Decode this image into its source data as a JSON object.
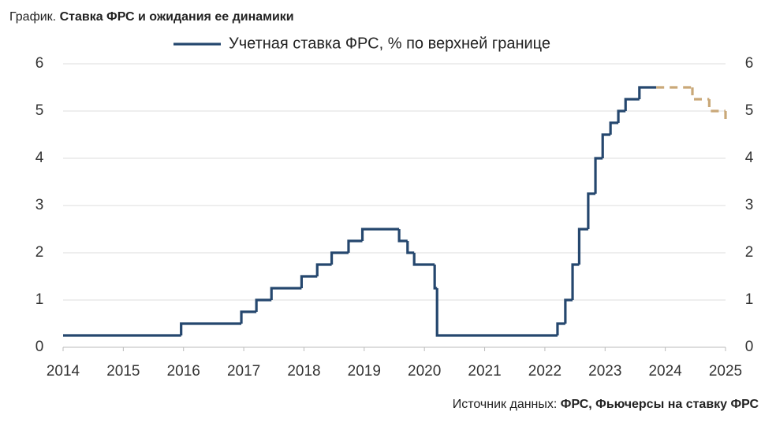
{
  "chart_data": {
    "type": "line",
    "step": "post",
    "title_prefix": "График.",
    "title": "Ставка ФРС и ожидания ее динамики",
    "source_prefix": "Источник данных:",
    "source": "ФРС, Фьючерсы на ставку ФРС",
    "xlim": [
      2014,
      2025
    ],
    "xticks": [
      2014,
      2015,
      2016,
      2017,
      2018,
      2019,
      2020,
      2021,
      2022,
      2023,
      2024,
      2025
    ],
    "ylim": [
      0,
      6
    ],
    "yticks": [
      0,
      1,
      2,
      3,
      4,
      5,
      6
    ],
    "y2lim": [
      0,
      6
    ],
    "y2ticks": [
      0,
      1,
      2,
      3,
      4,
      5,
      6
    ],
    "grid": true,
    "legend": "top",
    "series": [
      {
        "name": "Учетная ставка ФРС, % по верхней границе",
        "color": "#25476e",
        "dash": "solid",
        "x": [
          2014,
          2015.96,
          2016.96,
          2017.21,
          2017.46,
          2017.96,
          2018.22,
          2018.46,
          2018.74,
          2018.97,
          2019.58,
          2019.72,
          2019.83,
          2020.17,
          2020.21,
          2022.21,
          2022.34,
          2022.46,
          2022.57,
          2022.72,
          2022.84,
          2022.96,
          2023.09,
          2023.22,
          2023.34,
          2023.57
        ],
        "values": [
          0.25,
          0.5,
          0.75,
          1.0,
          1.25,
          1.5,
          1.75,
          2.0,
          2.25,
          2.5,
          2.25,
          2.0,
          1.75,
          1.25,
          0.25,
          0.5,
          1.0,
          1.75,
          2.5,
          3.25,
          4.0,
          4.5,
          4.75,
          5.0,
          5.25,
          5.5
        ]
      },
      {
        "color": "#c9a878",
        "dash": "dashed",
        "x": [
          2023.85,
          2024.45,
          2024.73,
          2025
        ],
        "values": [
          5.5,
          5.25,
          5.0,
          4.8
        ]
      }
    ]
  }
}
